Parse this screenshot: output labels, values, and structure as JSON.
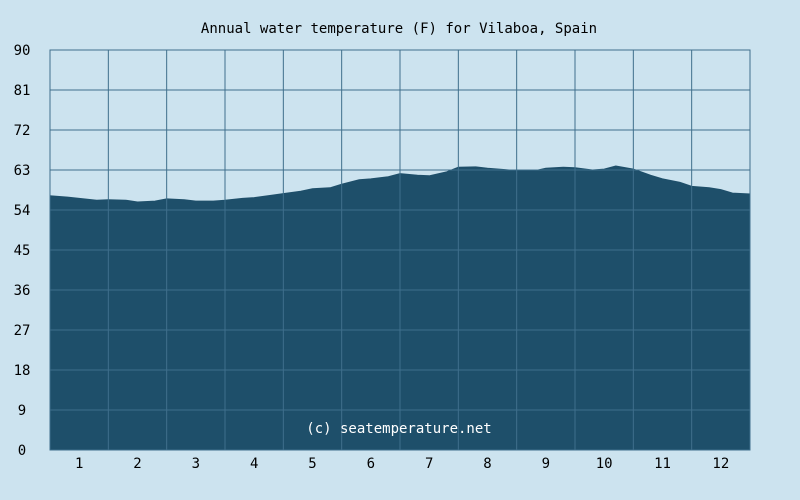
{
  "chart_data": {
    "type": "area",
    "title": "Annual water temperature (F) for Vilaboa, Spain",
    "watermark": "(c) seatemperature.net",
    "xlabel": "",
    "ylabel": "",
    "ylim": [
      0,
      90
    ],
    "xlim": [
      0.5,
      12.5
    ],
    "y_ticks": [
      "0",
      "9",
      "18",
      "27",
      "36",
      "45",
      "54",
      "63",
      "72",
      "81",
      "90"
    ],
    "x_ticks": [
      "1",
      "2",
      "3",
      "4",
      "5",
      "6",
      "7",
      "8",
      "9",
      "10",
      "11",
      "12"
    ],
    "grid": true,
    "colors": {
      "background": "#cce3ef",
      "fill": "#1e4f6a",
      "grid": "#3f6f8c",
      "text": "#000000"
    },
    "series": [
      {
        "x": [
          0.5,
          0.8,
          1.0,
          1.3,
          1.5,
          1.8,
          2.0,
          2.3,
          2.5,
          2.8,
          3.0,
          3.3,
          3.5,
          3.8,
          4.0,
          4.3,
          4.5,
          4.8,
          5.0,
          5.3,
          5.5,
          5.8,
          6.0,
          6.3,
          6.5,
          6.8,
          7.0,
          7.3,
          7.5,
          7.8,
          8.0,
          8.3,
          8.5,
          8.8,
          9.0,
          9.3,
          9.5,
          9.8,
          10.0,
          10.2,
          10.5,
          10.8,
          11.0,
          11.3,
          11.5,
          11.8,
          12.0,
          12.2,
          12.5
        ],
        "values": [
          57.2,
          56.9,
          56.6,
          56.2,
          56.3,
          56.2,
          55.8,
          56.0,
          56.5,
          56.3,
          56.0,
          56.0,
          56.2,
          56.6,
          56.8,
          57.3,
          57.7,
          58.2,
          58.8,
          59.0,
          59.8,
          60.8,
          61.0,
          61.5,
          62.2,
          61.8,
          61.7,
          62.6,
          63.6,
          63.7,
          63.4,
          63.1,
          62.8,
          62.8,
          63.4,
          63.6,
          63.5,
          63.0,
          63.2,
          63.9,
          63.2,
          61.8,
          61.0,
          60.2,
          59.3,
          59.0,
          58.6,
          57.8,
          57.6
        ]
      }
    ]
  }
}
